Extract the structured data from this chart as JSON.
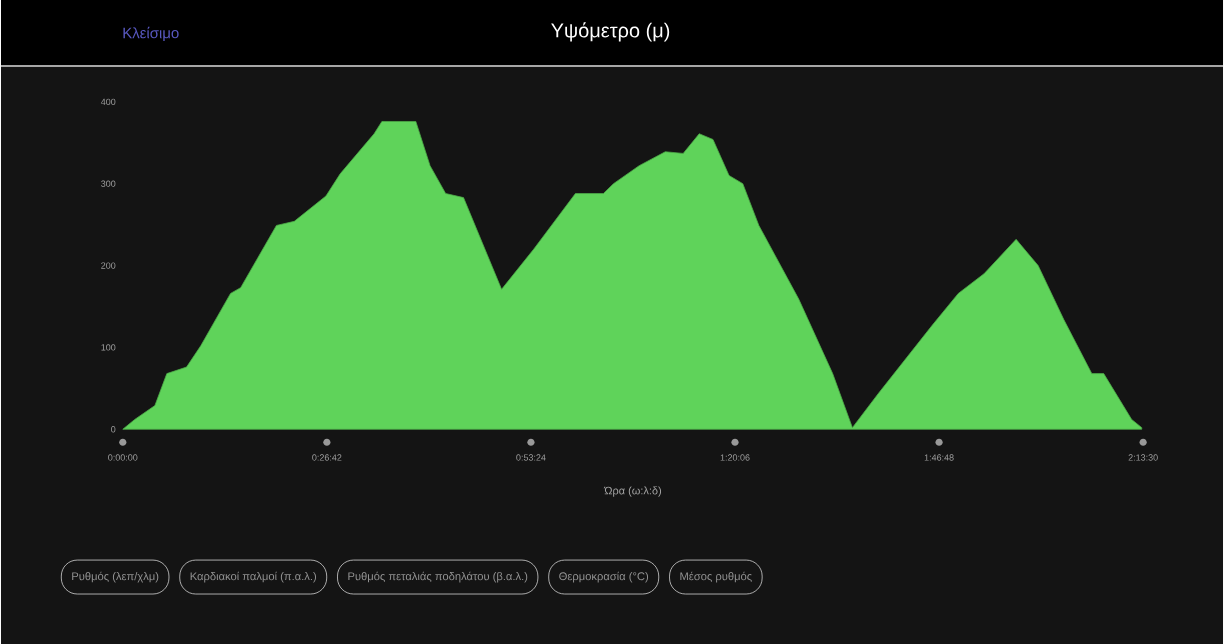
{
  "chart_data": {
    "type": "area",
    "title": "Υψόμετρο (μ)",
    "xlabel": "Ώρα (ω:λ:δ)",
    "annotations": [
      "Κλείσιμο",
      "Ρυθμός (λεπ/χλμ)",
      "Καρδιακοί παλμοί (π.α.λ.)",
      "Ρυθμός πεταλιάς ποδηλάτου (β.α.λ.)",
      "Θερμοκρασία (°C)",
      "Μέσος ρυθμός"
    ],
    "x": [
      0,
      0.026,
      0.07,
      0.096,
      0.139,
      0.17,
      0.235,
      0.257,
      0.335,
      0.374,
      0.443,
      0.474,
      0.548,
      0.565,
      0.639,
      0.67,
      0.704,
      0.743,
      0.826,
      0.896,
      0.987,
      1.048,
      1.07,
      1.126,
      1.183,
      1.222,
      1.257,
      1.287,
      1.322,
      1.352,
      1.387,
      1.474,
      1.548,
      1.591,
      1.648,
      1.765,
      1.822,
      1.878,
      1.948,
      1.996,
      2.052,
      2.113,
      2.139,
      2.2,
      2.222
    ],
    "values": [
      0,
      12,
      29,
      68,
      76,
      102,
      166,
      173,
      249,
      254,
      285,
      312,
      361,
      376,
      376,
      322,
      288,
      283,
      171,
      220,
      288,
      288,
      300,
      322,
      339,
      337,
      361,
      354,
      310,
      300,
      249,
      159,
      68,
      2,
      44,
      127,
      166,
      190,
      232,
      200,
      134,
      68,
      68,
      12,
      2
    ],
    "color": "#5fd35a",
    "xlim": [
      0,
      2.225
    ],
    "ylim": [
      0,
      400
    ],
    "xticks": [
      {
        "value": 0,
        "label": "0:00:00"
      },
      {
        "value": 0.445,
        "label": "0:26:42"
      },
      {
        "value": 0.89,
        "label": "0:53:24"
      },
      {
        "value": 1.335,
        "label": "1:20:06"
      },
      {
        "value": 1.78,
        "label": "1:46:48"
      },
      {
        "value": 2.225,
        "label": "2:13:30"
      }
    ],
    "yticks": [
      0,
      100,
      200,
      300,
      400
    ]
  }
}
